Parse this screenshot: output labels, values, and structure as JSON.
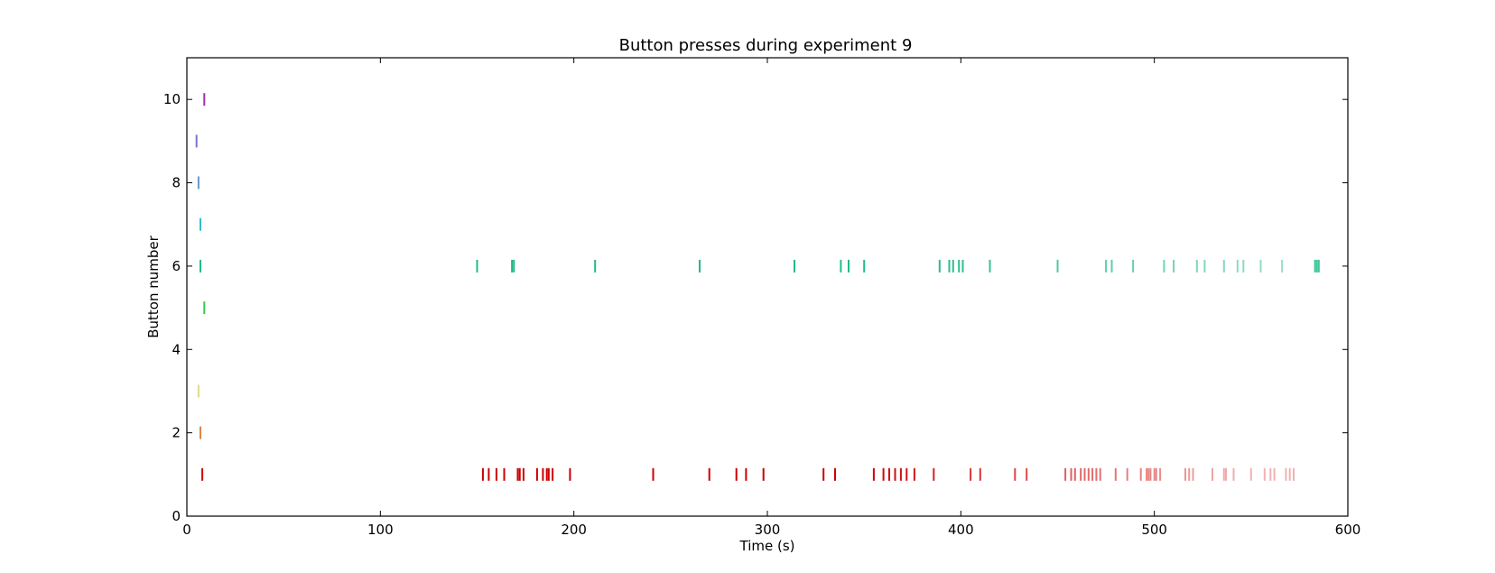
{
  "chart_data": {
    "type": "scatter",
    "marker": "vertical-tick",
    "title": "Button presses during experiment 9",
    "xlabel": "Time (s)",
    "ylabel": "Button number",
    "xlim": [
      0,
      600
    ],
    "ylim": [
      0,
      11
    ],
    "xticks": [
      0,
      100,
      200,
      300,
      400,
      500,
      600
    ],
    "yticks": [
      0,
      2,
      4,
      6,
      8,
      10
    ],
    "grid": false,
    "legend": "none",
    "series": [
      {
        "button": 1,
        "color": "#cc0000",
        "times": [
          8,
          153,
          156,
          160,
          164,
          171,
          172,
          174,
          181,
          184,
          186,
          187,
          189,
          198,
          241,
          270,
          284,
          289,
          298,
          329,
          335,
          355,
          360,
          363,
          366,
          369,
          372,
          376,
          386,
          405,
          410,
          428,
          434,
          454,
          457,
          459,
          462,
          464,
          466,
          468,
          470,
          472,
          480,
          486,
          493,
          496,
          497,
          498,
          500,
          501,
          503,
          516,
          518,
          520,
          530,
          536,
          537,
          541,
          550,
          557,
          560,
          562,
          568,
          570,
          572
        ]
      },
      {
        "button": 2,
        "color": "#d9884d",
        "times": [
          7
        ]
      },
      {
        "button": 3,
        "color": "#e6d98a",
        "times": [
          6
        ]
      },
      {
        "button": 5,
        "color": "#33cc55",
        "times": [
          9
        ]
      },
      {
        "button": 6,
        "color": "#22bb88",
        "times": [
          7,
          150,
          168,
          169,
          211,
          265,
          314,
          338,
          342,
          350,
          389,
          394,
          396,
          399,
          401,
          415,
          450,
          475,
          478,
          489,
          505,
          510,
          522,
          526,
          536,
          543,
          546,
          555,
          566,
          583,
          584,
          585
        ]
      },
      {
        "button": 7,
        "color": "#33bbcc",
        "times": [
          7
        ]
      },
      {
        "button": 8,
        "color": "#6699cc",
        "times": [
          6
        ]
      },
      {
        "button": 9,
        "color": "#7777cc",
        "times": [
          5
        ]
      },
      {
        "button": 10,
        "color": "#9933aa",
        "times": [
          9
        ]
      }
    ]
  }
}
